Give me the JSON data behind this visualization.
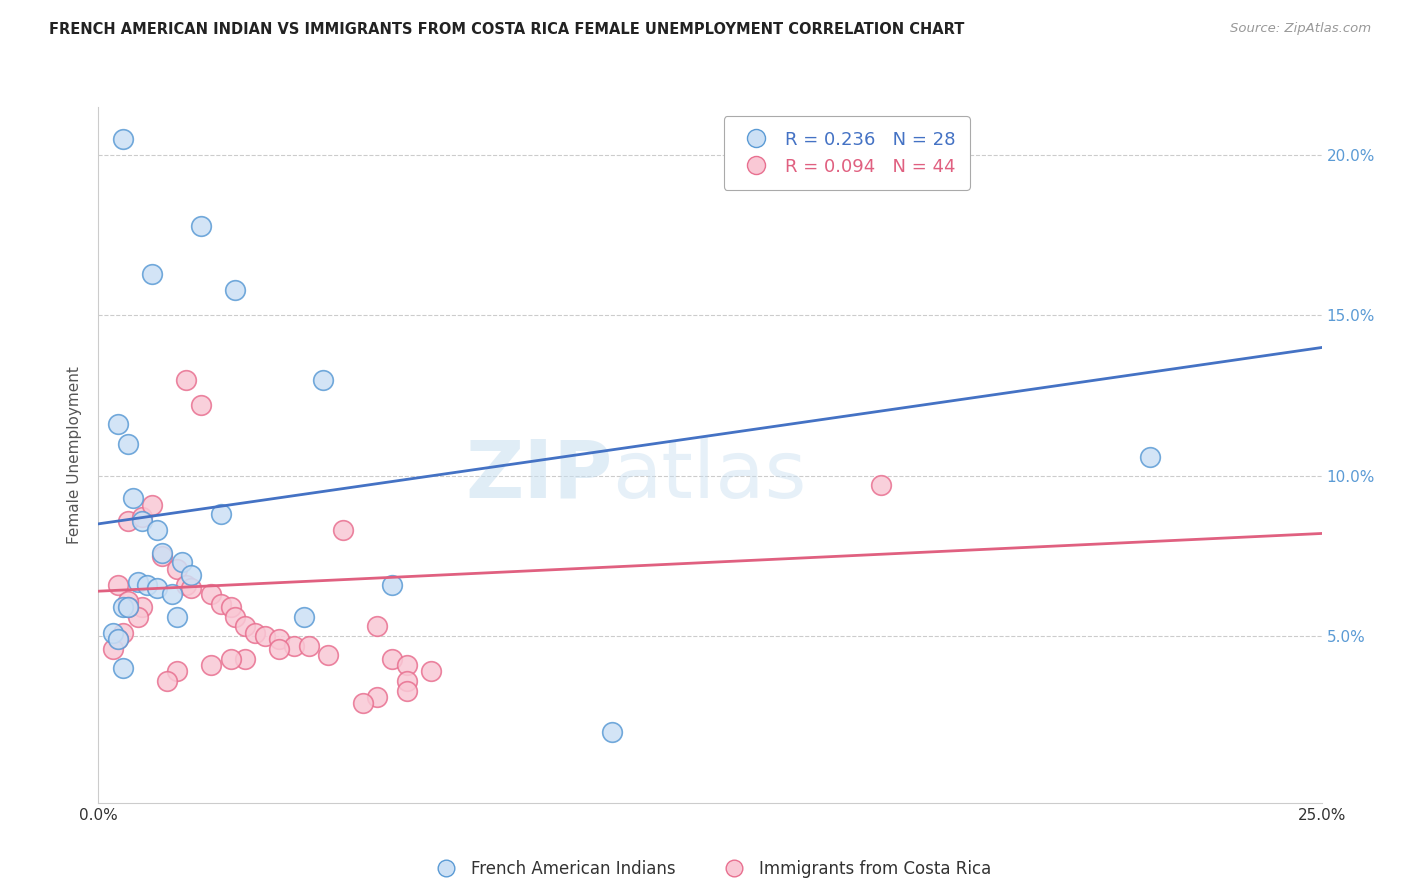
{
  "title": "FRENCH AMERICAN INDIAN VS IMMIGRANTS FROM COSTA RICA FEMALE UNEMPLOYMENT CORRELATION CHART",
  "source": "Source: ZipAtlas.com",
  "ylabel_left": "Female Unemployment",
  "xlim": [
    0.0,
    0.25
  ],
  "ylim": [
    -0.002,
    0.215
  ],
  "legend_blue_r": "R = 0.236",
  "legend_blue_n": "N = 28",
  "legend_pink_r": "R = 0.094",
  "legend_pink_n": "N = 44",
  "legend_blue_label": "French American Indians",
  "legend_pink_label": "Immigrants from Costa Rica",
  "blue_fill": "#cce0f5",
  "blue_edge": "#5b9bd5",
  "pink_fill": "#f9c8d5",
  "pink_edge": "#e87090",
  "blue_line_color": "#4472c4",
  "pink_line_color": "#e06080",
  "right_tick_color": "#5b9bd5",
  "watermark_color": "#c8dff0",
  "blue_scatter_x": [
    0.005,
    0.021,
    0.011,
    0.028,
    0.046,
    0.004,
    0.006,
    0.007,
    0.009,
    0.012,
    0.013,
    0.017,
    0.019,
    0.025,
    0.06,
    0.008,
    0.01,
    0.012,
    0.015,
    0.005,
    0.006,
    0.016,
    0.042,
    0.215,
    0.105,
    0.003,
    0.004,
    0.005
  ],
  "blue_scatter_y": [
    0.205,
    0.178,
    0.163,
    0.158,
    0.13,
    0.116,
    0.11,
    0.093,
    0.086,
    0.083,
    0.076,
    0.073,
    0.069,
    0.088,
    0.066,
    0.067,
    0.066,
    0.065,
    0.063,
    0.059,
    0.059,
    0.056,
    0.056,
    0.106,
    0.02,
    0.051,
    0.049,
    0.04
  ],
  "pink_scatter_x": [
    0.004,
    0.018,
    0.021,
    0.006,
    0.009,
    0.011,
    0.013,
    0.016,
    0.018,
    0.019,
    0.023,
    0.025,
    0.027,
    0.028,
    0.03,
    0.032,
    0.034,
    0.037,
    0.04,
    0.043,
    0.047,
    0.05,
    0.057,
    0.06,
    0.063,
    0.068,
    0.063,
    0.063,
    0.057,
    0.054,
    0.037,
    0.03,
    0.027,
    0.023,
    0.016,
    0.014,
    0.009,
    0.008,
    0.006,
    0.006,
    0.005,
    0.004,
    0.003,
    0.16
  ],
  "pink_scatter_y": [
    0.066,
    0.13,
    0.122,
    0.086,
    0.087,
    0.091,
    0.075,
    0.071,
    0.066,
    0.065,
    0.063,
    0.06,
    0.059,
    0.056,
    0.053,
    0.051,
    0.05,
    0.049,
    0.047,
    0.047,
    0.044,
    0.083,
    0.053,
    0.043,
    0.041,
    0.039,
    0.036,
    0.033,
    0.031,
    0.029,
    0.046,
    0.043,
    0.043,
    0.041,
    0.039,
    0.036,
    0.059,
    0.056,
    0.061,
    0.059,
    0.051,
    0.049,
    0.046,
    0.097
  ],
  "blue_line_x0": 0.0,
  "blue_line_x1": 0.25,
  "blue_line_y0": 0.085,
  "blue_line_y1": 0.14,
  "pink_line_x0": 0.0,
  "pink_line_x1": 0.25,
  "pink_line_y0": 0.064,
  "pink_line_y1": 0.082
}
